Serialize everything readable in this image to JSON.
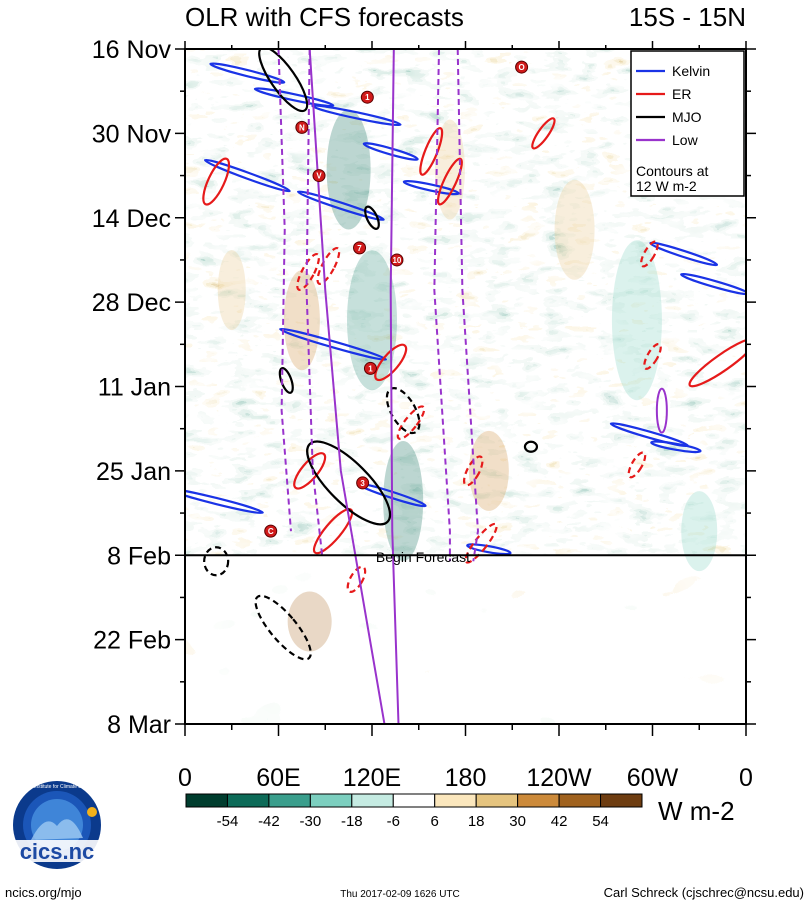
{
  "chart_data": {
    "type": "heatmap",
    "title": "OLR with CFS forecasts",
    "region": "15S - 15N",
    "y_labels": [
      "16 Nov",
      "30 Nov",
      "14 Dec",
      "28 Dec",
      "11 Jan",
      "25 Jan",
      "8 Feb",
      "22 Feb",
      "8 Mar"
    ],
    "x_labels": [
      "0",
      "60E",
      "120E",
      "180",
      "120W",
      "60W",
      "0"
    ],
    "x_range": [
      0,
      360
    ],
    "y_range_days": [
      0,
      112
    ],
    "forecast_start_day": 84,
    "forecast_label": "Begin Forecast",
    "legend": {
      "entries": [
        {
          "name": "Kelvin",
          "color": "#1a33e6"
        },
        {
          "name": "ER",
          "color": "#e61a1a"
        },
        {
          "name": "MJO",
          "color": "#000000"
        },
        {
          "name": "Low",
          "color": "#9933cc"
        }
      ],
      "note_line1": "Contours at",
      "note_line2": "12 W m-2"
    },
    "colorbar": {
      "ticks": [
        "-54",
        "-42",
        "-30",
        "-18",
        "-6",
        "6",
        "18",
        "30",
        "42",
        "54"
      ],
      "colors": [
        "#003d2e",
        "#0d6b58",
        "#3a9e8c",
        "#7ccfbf",
        "#c5ebe2",
        "#ffffff",
        "#fbe7bd",
        "#e5c47f",
        "#cc8a3a",
        "#a0621e",
        "#6e3d11"
      ],
      "units": "W m-2"
    },
    "storm_markers": [
      {
        "lon": 117,
        "day": 8,
        "label": "1"
      },
      {
        "lon": 216,
        "day": 3,
        "label": "O"
      },
      {
        "lon": 75,
        "day": 13,
        "label": "N"
      },
      {
        "lon": 86,
        "day": 21,
        "label": "V"
      },
      {
        "lon": 112,
        "day": 33,
        "label": "7"
      },
      {
        "lon": 136,
        "day": 35,
        "label": "10"
      },
      {
        "lon": 119,
        "day": 53,
        "label": "1"
      },
      {
        "lon": 114,
        "day": 72,
        "label": "3"
      },
      {
        "lon": 55,
        "day": 80,
        "label": "C"
      }
    ]
  },
  "footer": {
    "logo_text": "cics.nc",
    "logo_ring_text": "Cooperative Institute for Climate and Satellites",
    "url": "ncics.org/mjo",
    "timestamp": "Thu 2017-02-09 1626 UTC",
    "author": "Carl Schreck (cjschrec@ncsu.edu)"
  }
}
